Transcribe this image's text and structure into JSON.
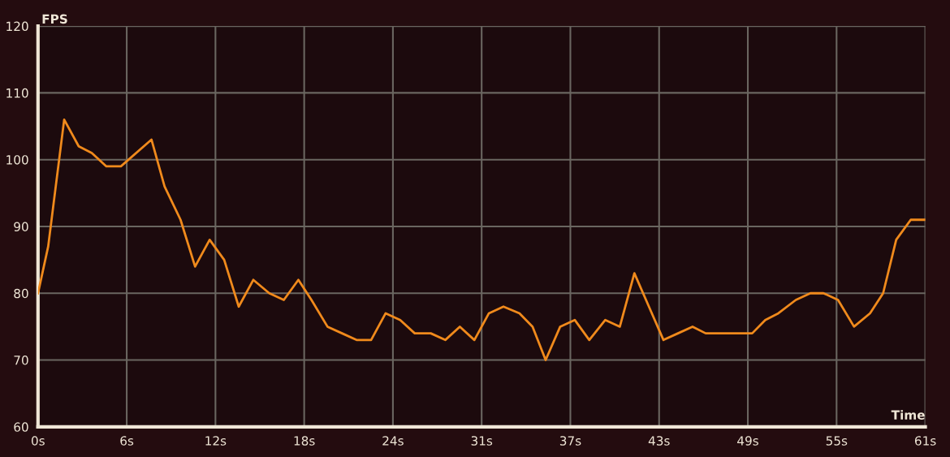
{
  "chart_data": {
    "type": "line",
    "xlabel": "Time",
    "ylabel": "FPS",
    "x": [
      0,
      0.7,
      1.8,
      2.8,
      3.7,
      4.7,
      5.7,
      7.8,
      8.7,
      9.8,
      10.8,
      11.8,
      12.8,
      13.8,
      14.8,
      15.9,
      16.9,
      17.9,
      18.8,
      19.9,
      20.9,
      21.9,
      22.9,
      23.9,
      24.9,
      25.9,
      27.0,
      28.0,
      29.0,
      30.0,
      31.0,
      32.0,
      33.1,
      34.0,
      34.9,
      35.9,
      36.9,
      37.9,
      39.0,
      40.0,
      41.0,
      42.0,
      43.0,
      44.0,
      45.0,
      45.9,
      46.9,
      47.9,
      49.1,
      50.0,
      50.9,
      52.1,
      53.1,
      54.0,
      55.0,
      56.1,
      57.2,
      58.1,
      59.0,
      60.0,
      61.0
    ],
    "series": [
      {
        "color": "#f08a1c",
        "values": [
          80,
          87,
          106,
          102,
          101,
          99,
          99,
          103,
          96,
          91,
          84,
          88,
          85,
          78,
          82,
          80,
          79,
          82,
          79,
          75,
          74,
          73,
          73,
          77,
          76,
          74,
          74,
          73,
          75,
          73,
          77,
          78,
          77,
          75,
          70,
          75,
          76,
          73,
          76,
          75,
          83,
          78,
          73,
          74,
          75,
          74,
          74,
          74,
          74,
          76,
          77,
          79,
          80,
          80,
          79,
          75,
          77,
          80,
          88,
          91,
          91
        ]
      }
    ],
    "xlim": [
      0,
      61
    ],
    "ylim": [
      60,
      120
    ],
    "xticks": [
      {
        "value": 0,
        "label": "0s"
      },
      {
        "value": 6.1,
        "label": "6s"
      },
      {
        "value": 12.2,
        "label": "12s"
      },
      {
        "value": 18.3,
        "label": "18s"
      },
      {
        "value": 24.4,
        "label": "24s"
      },
      {
        "value": 30.5,
        "label": "31s"
      },
      {
        "value": 36.6,
        "label": "37s"
      },
      {
        "value": 42.7,
        "label": "43s"
      },
      {
        "value": 48.8,
        "label": "49s"
      },
      {
        "value": 54.9,
        "label": "55s"
      },
      {
        "value": 61,
        "label": "61s"
      }
    ],
    "yticks": [
      60,
      70,
      80,
      90,
      100,
      110,
      120
    ],
    "grid": true,
    "marker": "none",
    "line_style": "solid",
    "legend": false
  }
}
